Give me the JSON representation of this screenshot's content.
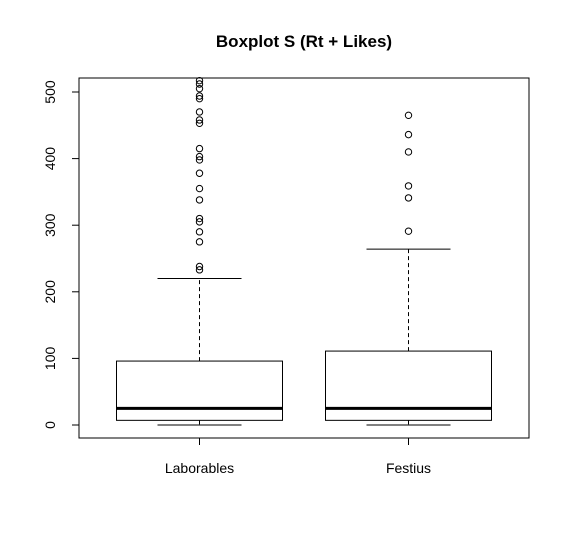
{
  "chart_data": {
    "type": "boxplot",
    "title": "Boxplot S (Rt + Likes)",
    "xlabel": "",
    "ylabel": "",
    "ylim": [
      -20,
      520
    ],
    "yticks": [
      0,
      100,
      200,
      300,
      400,
      500
    ],
    "grid": false,
    "categories": [
      "Laborables",
      "Festius"
    ],
    "boxes": [
      {
        "name": "Laborables",
        "lower_whisker": 0,
        "q1": 7,
        "median": 25,
        "q3": 96,
        "upper_whisker": 220,
        "outliers": [
          233,
          238,
          275,
          290,
          305,
          310,
          338,
          355,
          378,
          398,
          403,
          415,
          453,
          458,
          470,
          490,
          494,
          505,
          512,
          517
        ]
      },
      {
        "name": "Festius",
        "lower_whisker": 0,
        "q1": 7,
        "median": 25,
        "q3": 111,
        "upper_whisker": 264,
        "outliers": [
          291,
          341,
          359,
          410,
          436,
          465
        ]
      }
    ]
  }
}
